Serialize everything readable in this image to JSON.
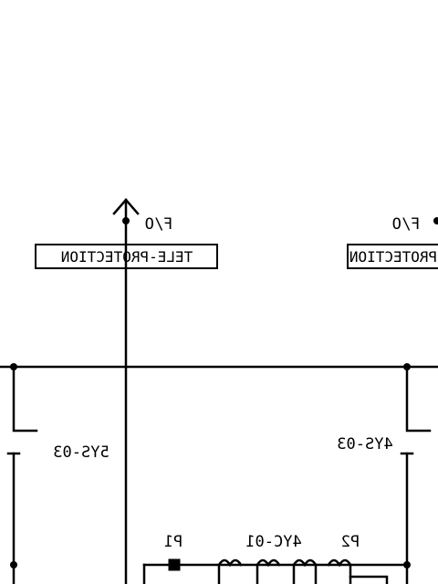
{
  "labels": {
    "fo_left": "F/O",
    "fo_right": "F/O",
    "teleprotection_left": "TELE-PROTECTION",
    "teleprotection_right": "PROTECTION",
    "sys03_left": "5YS-03",
    "sys03_right": "4YS-03",
    "p1": "P1",
    "p2": "P2",
    "yc01": "4YC-01"
  },
  "colors": {
    "ink": "#000000",
    "paper": "#ffffff"
  },
  "note": ""
}
